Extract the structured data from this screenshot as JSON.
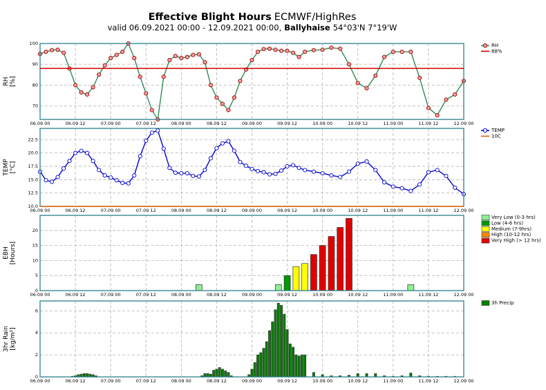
{
  "header": {
    "title_bold": "Effective Blight Hours",
    "title_rest": "ECMWF/HighRes",
    "subtitle_pre": "valid 06.09.2021 00:00 - 12.09.2021 00:00,",
    "subtitle_bold": "Ballyhaise",
    "subtitle_post": "54°03'N 7°19'W"
  },
  "chart_data": [
    {
      "type": "line",
      "ylabel": [
        "RH",
        "[%]"
      ],
      "xlim": [
        0,
        144
      ],
      "ylim": [
        63.5,
        100
      ],
      "yticks": [
        70,
        80,
        90,
        100
      ],
      "grid": true,
      "xticks": [
        {
          "value": 0,
          "label": "06.09 00"
        },
        {
          "value": 12,
          "label": "06.09 12"
        },
        {
          "value": 24,
          "label": "07.09 00"
        },
        {
          "value": 36,
          "label": "07.09 12"
        },
        {
          "value": 48,
          "label": "08.09 00"
        },
        {
          "value": 60,
          "label": "08.09 12"
        },
        {
          "value": 72,
          "label": "09.09 00"
        },
        {
          "value": 84,
          "label": "09.09 12"
        },
        {
          "value": 96,
          "label": "10.09 00"
        },
        {
          "value": 108,
          "label": "10.09 12"
        },
        {
          "value": 120,
          "label": "11.09 00"
        },
        {
          "value": 132,
          "label": "11.09 12"
        },
        {
          "value": 144,
          "label": "12.09 00"
        }
      ],
      "x": [
        0,
        2,
        4,
        6,
        8,
        10,
        12,
        14,
        16,
        18,
        20,
        22,
        24,
        26,
        28,
        30,
        32,
        34,
        36,
        38,
        40,
        42,
        44,
        46,
        48,
        50,
        52,
        54,
        56,
        58,
        60,
        62,
        64,
        66,
        68,
        70,
        72,
        74,
        76,
        78,
        80,
        82,
        84,
        86,
        88,
        90,
        93,
        96,
        99,
        102,
        105,
        108,
        111,
        114,
        117,
        120,
        123,
        126,
        129,
        132,
        135,
        138,
        141,
        144
      ],
      "series": [
        {
          "name": "RH",
          "color": "#2e8b57",
          "marker_fill": "#f4a0a0",
          "marker_edge": "#a00000",
          "values": [
            95,
            96,
            96.8,
            97,
            95.5,
            88,
            80,
            76.5,
            75.5,
            79,
            85,
            89.5,
            93,
            94.5,
            96,
            100,
            93,
            84,
            76,
            68,
            63.5,
            84,
            92,
            94,
            93,
            93.5,
            94.5,
            94.8,
            91,
            80,
            74,
            71,
            68,
            74,
            82,
            87.5,
            92,
            96,
            97.3,
            97.5,
            97,
            96.5,
            96.5,
            95.5,
            93.5,
            96,
            96.8,
            97,
            98,
            97.5,
            90,
            81,
            78.5,
            84.5,
            93.5,
            96,
            96,
            96,
            83.5,
            69,
            65.5,
            73,
            75.5,
            82
          ]
        }
      ],
      "hline": {
        "name": "88%",
        "value": 88,
        "color": "#d00000"
      }
    },
    {
      "type": "line",
      "ylabel": [
        "TEMP",
        "[°C]"
      ],
      "xlim": [
        0,
        144
      ],
      "ylim": [
        10,
        24.6
      ],
      "grid": true,
      "yticks": [
        {
          "value": 10,
          "label": "10.0"
        },
        12.5,
        {
          "value": 15,
          "label": "15.0"
        },
        17.5,
        {
          "value": 20,
          "label": "20.0"
        },
        22.5
      ],
      "xticks": [
        {
          "value": 0,
          "label": "06.09 00"
        },
        {
          "value": 12,
          "label": "06.09 12"
        },
        {
          "value": 24,
          "label": "07.09 00"
        },
        {
          "value": 36,
          "label": "07.09 12"
        },
        {
          "value": 48,
          "label": "08.09 00"
        },
        {
          "value": 60,
          "label": "08.09 12"
        },
        {
          "value": 72,
          "label": "09.09 00"
        },
        {
          "value": 84,
          "label": "09.09 12"
        },
        {
          "value": 96,
          "label": "10.09 00"
        },
        {
          "value": 108,
          "label": "10.09 12"
        },
        {
          "value": 120,
          "label": "11.09 00"
        },
        {
          "value": 132,
          "label": "11.09 12"
        },
        {
          "value": 144,
          "label": "12.09 00"
        }
      ],
      "x": [
        0,
        2,
        4,
        6,
        8,
        10,
        12,
        14,
        16,
        18,
        20,
        22,
        24,
        26,
        28,
        30,
        32,
        34,
        36,
        38,
        40,
        42,
        44,
        46,
        48,
        50,
        52,
        54,
        56,
        58,
        60,
        62,
        64,
        66,
        68,
        70,
        72,
        74,
        76,
        78,
        80,
        82,
        84,
        86,
        88,
        90,
        93,
        96,
        99,
        102,
        105,
        108,
        111,
        114,
        117,
        120,
        123,
        126,
        129,
        132,
        135,
        138,
        141,
        144
      ],
      "series": [
        {
          "name": "TEMP",
          "color": "#0000cc",
          "marker_fill": "#ffffff",
          "marker_edge": "#0000cc",
          "values": [
            16.5,
            14.9,
            14.6,
            15.5,
            17.1,
            18.5,
            20.0,
            20.4,
            20.0,
            18.5,
            16.8,
            15.8,
            15.4,
            14.9,
            14.4,
            14.3,
            15.8,
            19.4,
            22.3,
            23.8,
            24.2,
            20.8,
            17.2,
            16.3,
            16.2,
            16.2,
            15.7,
            15.6,
            16.8,
            19.0,
            20.9,
            21.8,
            22.2,
            20.4,
            18.3,
            17.6,
            17.0,
            16.6,
            16.4,
            16.0,
            16.1,
            16.7,
            17.5,
            17.7,
            17.2,
            16.8,
            16.5,
            16.2,
            15.8,
            15.5,
            16.5,
            18.0,
            18.4,
            16.8,
            14.5,
            13.7,
            13.4,
            12.9,
            14.1,
            16.4,
            16.8,
            15.7,
            13.5,
            12.3
          ]
        }
      ],
      "hline": {
        "name": "10C",
        "value": 10,
        "color": "#e06000"
      }
    },
    {
      "type": "bar",
      "ylabel": [
        "EBH",
        "[Hours]"
      ],
      "xlim": [
        0,
        144
      ],
      "ylim": [
        0,
        25
      ],
      "yticks": [
        0,
        5,
        10,
        15,
        20
      ],
      "grid": true,
      "xticks": [
        {
          "value": 0,
          "label": "06.09 00"
        },
        {
          "value": 12,
          "label": "06.09 12"
        },
        {
          "value": 24,
          "label": "07.09 00"
        },
        {
          "value": 36,
          "label": "07.09 12"
        },
        {
          "value": 48,
          "label": "08.09 00"
        },
        {
          "value": 60,
          "label": "08.09 12"
        },
        {
          "value": 72,
          "label": "09.09 00"
        },
        {
          "value": 84,
          "label": "09.09 12"
        },
        {
          "value": 96,
          "label": "10.09 00"
        },
        {
          "value": 108,
          "label": "10.09 12"
        },
        {
          "value": 120,
          "label": "11.09 00"
        },
        {
          "value": 132,
          "label": "11.09 12"
        },
        {
          "value": 144,
          "label": "12.09 00"
        }
      ],
      "series": [
        {
          "name": "Very Low (0-3 hrs)",
          "color": "#90ee90",
          "x": [
            6,
            9,
            12,
            15,
            18,
            21,
            24,
            27,
            30,
            33,
            36,
            39,
            42,
            45,
            48,
            51,
            54,
            57,
            60,
            63,
            66,
            69,
            72,
            75,
            78,
            81,
            108,
            111,
            114,
            117,
            120,
            123,
            126,
            129,
            132,
            135,
            138,
            141,
            144
          ],
          "values": [
            0,
            0,
            0,
            0,
            0,
            0,
            0,
            0,
            0,
            0,
            0,
            0,
            0,
            0,
            0,
            0,
            2,
            0,
            0,
            0,
            0,
            0,
            0,
            0,
            0,
            2,
            0,
            0,
            0,
            0,
            0,
            0,
            2,
            0,
            0,
            0,
            0,
            0,
            0
          ]
        },
        {
          "name": "Low (4-6 hrs)",
          "color": "#009900",
          "x": [
            84
          ],
          "values": [
            5
          ]
        },
        {
          "name": "Medium (7-9hrs)",
          "color": "#ffff00",
          "x": [
            87,
            90
          ],
          "values": [
            8,
            9
          ]
        },
        {
          "name": "High (10-12 hrs)",
          "color": "#ff8c00",
          "x": [],
          "values": []
        },
        {
          "name": "Very High (> 12 hrs)",
          "color": "#e00000",
          "x": [
            93,
            96,
            99,
            102,
            105
          ],
          "values": [
            12,
            15,
            18,
            21,
            24
          ]
        }
      ]
    },
    {
      "type": "bar",
      "ylabel": [
        "3hr Rain",
        "[kg/m²]"
      ],
      "xlim": [
        0,
        144
      ],
      "ylim": [
        0,
        6.9
      ],
      "yticks": [
        0,
        2,
        4,
        6
      ],
      "grid": true,
      "xticks": [
        {
          "value": 0,
          "label": "06.09 00"
        },
        {
          "value": 12,
          "label": "06.09 12"
        },
        {
          "value": 24,
          "label": "07.09 00"
        },
        {
          "value": 36,
          "label": "07.09 12"
        },
        {
          "value": 48,
          "label": "08.09 00"
        },
        {
          "value": 60,
          "label": "08.09 12"
        },
        {
          "value": 72,
          "label": "09.09 00"
        },
        {
          "value": 84,
          "label": "09.09 12"
        },
        {
          "value": 96,
          "label": "10.09 00"
        },
        {
          "value": 108,
          "label": "10.09 12"
        },
        {
          "value": 120,
          "label": "11.09 00"
        },
        {
          "value": 132,
          "label": "11.09 12"
        },
        {
          "value": 144,
          "label": "12.09 00"
        }
      ],
      "x": [
        0,
        1,
        2,
        3,
        4,
        5,
        6,
        7,
        8,
        9,
        10,
        11,
        12,
        13,
        14,
        15,
        16,
        17,
        18,
        19,
        20,
        21,
        22,
        23,
        24,
        25,
        26,
        27,
        28,
        29,
        30,
        31,
        32,
        33,
        34,
        35,
        36,
        37,
        38,
        39,
        40,
        41,
        42,
        43,
        44,
        45,
        46,
        47,
        48,
        49,
        50,
        51,
        52,
        53,
        54,
        55,
        56,
        57,
        58,
        59,
        60,
        61,
        62,
        63,
        64,
        65,
        66,
        67,
        68,
        69,
        70,
        71,
        72,
        73,
        74,
        75,
        76,
        77,
        78,
        79,
        80,
        81,
        82,
        83,
        84,
        85,
        86,
        87,
        88,
        89,
        90,
        93,
        96,
        99,
        102,
        105,
        108,
        111,
        114,
        117,
        120,
        123,
        126,
        129,
        132,
        135,
        138,
        141,
        144
      ],
      "series": [
        {
          "name": "3h Precip",
          "color": "#008000",
          "values": [
            0,
            0,
            0,
            0,
            0,
            0,
            0,
            0,
            0,
            0,
            0,
            0.05,
            0.1,
            0.2,
            0.25,
            0.3,
            0.3,
            0.25,
            0.2,
            0.1,
            0,
            0,
            0,
            0,
            0,
            0,
            0,
            0,
            0,
            0,
            0,
            0,
            0,
            0,
            0,
            0,
            0,
            0,
            0,
            0,
            0,
            0,
            0,
            0,
            0,
            0,
            0,
            0,
            0,
            0,
            0,
            0,
            0,
            0,
            0,
            0.1,
            0.3,
            0.3,
            0.25,
            0.6,
            0.7,
            0.85,
            0.7,
            0.55,
            0.4,
            0.1,
            0,
            0,
            0,
            0,
            0,
            0.2,
            0.7,
            1.3,
            2.0,
            2.2,
            2.6,
            3.2,
            4.2,
            5.0,
            6.1,
            6.7,
            6.5,
            5.7,
            4.3,
            3.0,
            2.7,
            2.0,
            1.9,
            2.0,
            2.0,
            0.4,
            0.2,
            0.1,
            0.1,
            0.15,
            0.3,
            0.3,
            0.3,
            0.1,
            0.05,
            0.1,
            0.35,
            0.1,
            0.05,
            0.05,
            0.05,
            0.05,
            0
          ]
        }
      ]
    }
  ]
}
